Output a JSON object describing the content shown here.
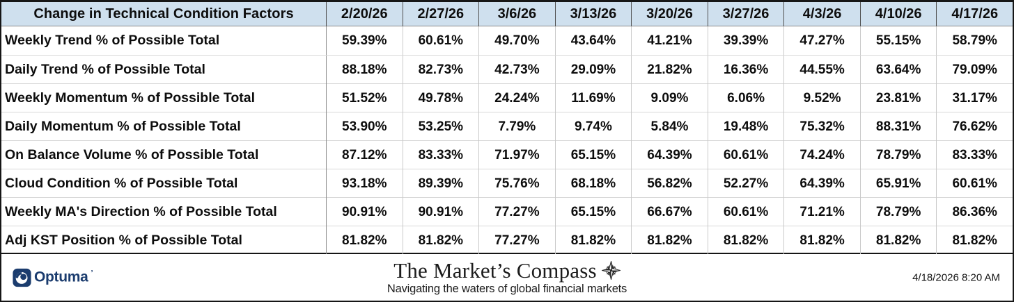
{
  "table": {
    "header_label": "Change in Technical Condition Factors",
    "dates": [
      "2/20/26",
      "2/27/26",
      "3/6/26",
      "3/13/26",
      "3/20/26",
      "3/27/26",
      "4/3/26",
      "4/10/26",
      "4/17/26"
    ],
    "rows": [
      {
        "label": "Weekly Trend % of Possible Total",
        "values": [
          "59.39%",
          "60.61%",
          "49.70%",
          "43.64%",
          "41.21%",
          "39.39%",
          "47.27%",
          "55.15%",
          "58.79%"
        ]
      },
      {
        "label": "Daily Trend % of Possible Total",
        "values": [
          "88.18%",
          "82.73%",
          "42.73%",
          "29.09%",
          "21.82%",
          "16.36%",
          "44.55%",
          "63.64%",
          "79.09%"
        ]
      },
      {
        "label": "Weekly Momentum % of Possible Total",
        "values": [
          "51.52%",
          "49.78%",
          "24.24%",
          "11.69%",
          "9.09%",
          "6.06%",
          "9.52%",
          "23.81%",
          "31.17%"
        ]
      },
      {
        "label": "Daily Momentum % of Possible Total",
        "values": [
          "53.90%",
          "53.25%",
          "7.79%",
          "9.74%",
          "5.84%",
          "19.48%",
          "75.32%",
          "88.31%",
          "76.62%"
        ]
      },
      {
        "label": "On Balance Volume % of Possible Total",
        "values": [
          "87.12%",
          "83.33%",
          "71.97%",
          "65.15%",
          "64.39%",
          "60.61%",
          "74.24%",
          "78.79%",
          "83.33%"
        ]
      },
      {
        "label": "Cloud Condition % of Possible Total",
        "values": [
          "93.18%",
          "89.39%",
          "75.76%",
          "68.18%",
          "56.82%",
          "52.27%",
          "64.39%",
          "65.91%",
          "60.61%"
        ]
      },
      {
        "label": "Weekly MA's Direction % of Possible Total",
        "values": [
          "90.91%",
          "90.91%",
          "77.27%",
          "65.15%",
          "66.67%",
          "60.61%",
          "71.21%",
          "78.79%",
          "86.36%"
        ]
      },
      {
        "label": "Adj KST Position % of Possible Total",
        "values": [
          "81.82%",
          "81.82%",
          "77.27%",
          "81.82%",
          "81.82%",
          "81.82%",
          "81.82%",
          "81.82%",
          "81.82%"
        ]
      }
    ]
  },
  "footer": {
    "logo_text": "Optuma",
    "logo_mark": "’",
    "brand_title": "The Market’s Compass",
    "brand_subtitle": "Navigating the waters of global financial markets",
    "timestamp": "4/18/2026 8:20 AM"
  },
  "colors": {
    "header_bg": "#cfe0ee",
    "logo_navy": "#1b3c6e",
    "frame_border": "#161616"
  },
  "icons": {
    "optuma": "optuma-wave-icon",
    "compass": "compass-rose-icon"
  },
  "chart_data": {
    "type": "table",
    "title": "Change in Technical Condition Factors",
    "unit": "%",
    "categories": [
      "2/20/26",
      "2/27/26",
      "3/6/26",
      "3/13/26",
      "3/20/26",
      "3/27/26",
      "4/3/26",
      "4/10/26",
      "4/17/26"
    ],
    "series": [
      {
        "name": "Weekly Trend % of Possible Total",
        "values": [
          59.39,
          60.61,
          49.7,
          43.64,
          41.21,
          39.39,
          47.27,
          55.15,
          58.79
        ]
      },
      {
        "name": "Daily Trend % of Possible Total",
        "values": [
          88.18,
          82.73,
          42.73,
          29.09,
          21.82,
          16.36,
          44.55,
          63.64,
          79.09
        ]
      },
      {
        "name": "Weekly Momentum % of Possible Total",
        "values": [
          51.52,
          49.78,
          24.24,
          11.69,
          9.09,
          6.06,
          9.52,
          23.81,
          31.17
        ]
      },
      {
        "name": "Daily Momentum % of Possible Total",
        "values": [
          53.9,
          53.25,
          7.79,
          9.74,
          5.84,
          19.48,
          75.32,
          88.31,
          76.62
        ]
      },
      {
        "name": "On Balance Volume % of Possible Total",
        "values": [
          87.12,
          83.33,
          71.97,
          65.15,
          64.39,
          60.61,
          74.24,
          78.79,
          83.33
        ]
      },
      {
        "name": "Cloud Condition % of Possible Total",
        "values": [
          93.18,
          89.39,
          75.76,
          68.18,
          56.82,
          52.27,
          64.39,
          65.91,
          60.61
        ]
      },
      {
        "name": "Weekly MA's Direction % of Possible Total",
        "values": [
          90.91,
          90.91,
          77.27,
          65.15,
          66.67,
          60.61,
          71.21,
          78.79,
          86.36
        ]
      },
      {
        "name": "Adj KST Position % of Possible Total",
        "values": [
          81.82,
          81.82,
          77.27,
          81.82,
          81.82,
          81.82,
          81.82,
          81.82,
          81.82
        ]
      }
    ]
  }
}
